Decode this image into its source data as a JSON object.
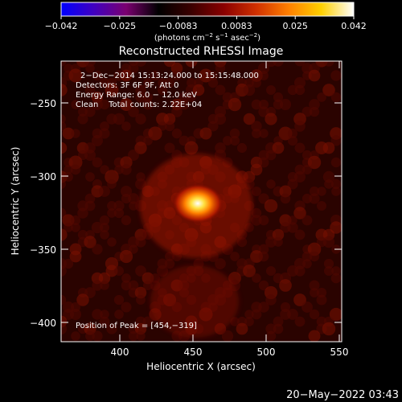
{
  "colorbar": {
    "tick_labels": [
      "−0.042",
      "−0.025",
      "−0.0083",
      "0.0083",
      "0.025",
      "0.042"
    ],
    "units_prefix": "(photons cm",
    "units_exp1": "−2",
    "units_mid": " s",
    "units_exp2": "−1",
    "units_mid2": " asec",
    "units_exp3": "−2",
    "units_suffix": ")",
    "colors": [
      "#0000ff",
      "#4000c0",
      "#7a0070",
      "#000000",
      "#3a0000",
      "#8a0000",
      "#d03000",
      "#ff8000",
      "#ffd000",
      "#ffffff"
    ]
  },
  "title": "Reconstructed RHESSI Image",
  "info": {
    "line1": "2−Dec−2014 15:13:24.000 to 15:15:48.000",
    "line2": "Detectors: 3F 6F 9F, Att 0",
    "line3": "Energy Range: 6.0 − 12.0 keV",
    "line4": "Clean    Total counts: 2.22E+04",
    "peak": "Position of Peak = [454,−319]"
  },
  "axes": {
    "xlabel": "Heliocentric X (arcsec)",
    "ylabel": "Heliocentric Y (arcsec)",
    "xticks": [
      "400",
      "450",
      "500",
      "550"
    ],
    "yticks": [
      "−250",
      "−300",
      "−350",
      "−400"
    ]
  },
  "image": {
    "peak_x": 454,
    "peak_y": -319
  },
  "footer": {
    "timestamp": "20−May−2022 03:43"
  }
}
